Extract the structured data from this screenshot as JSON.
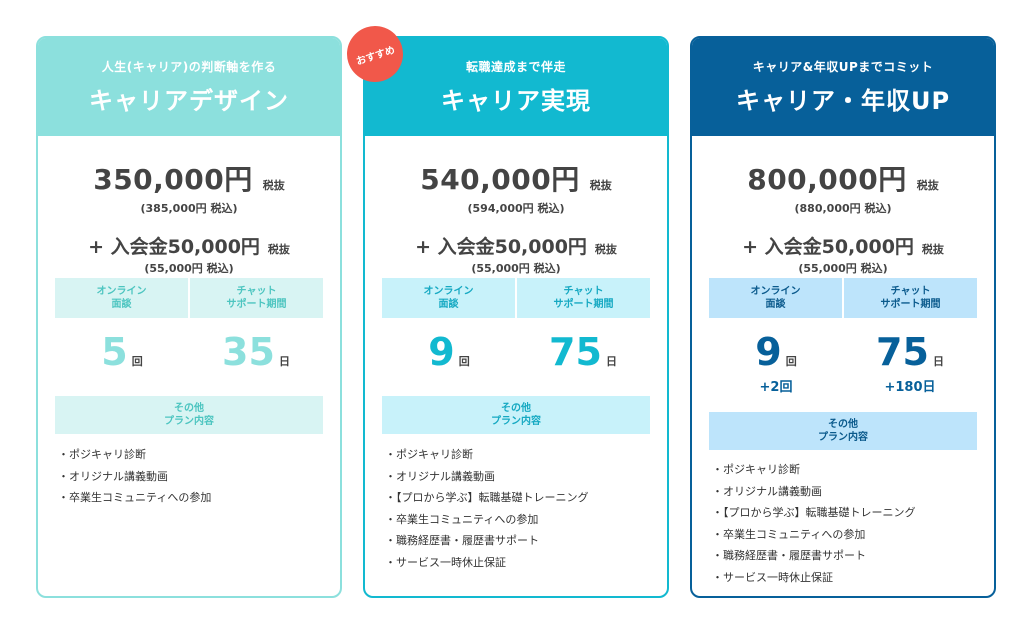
{
  "badge": "おすすめ",
  "plans": [
    {
      "subtitle": "人生(キャリア)の判断軸を作る",
      "title": "キャリアデザイン",
      "price": "350,000円",
      "price_tax": "税抜",
      "price_incl": "(385,000円 税込)",
      "fee": "+ 入会金50,000円",
      "fee_tax": "税抜",
      "fee_incl": "(55,000円 税込)",
      "online_label": "オンライン\n面談",
      "chat_label": "チャット\nサポート期間",
      "online_count": "5",
      "online_unit": "回",
      "chat_days": "35",
      "chat_unit": "日",
      "other_label": "その他\nプラン内容",
      "features": [
        "・ポジキャリ診断",
        "・オリジナル講義動画",
        "・卒業生コミュニティへの参加"
      ]
    },
    {
      "subtitle": "転職達成まで伴走",
      "title": "キャリア実現",
      "price": "540,000円",
      "price_tax": "税抜",
      "price_incl": "(594,000円 税込)",
      "fee": "+ 入会金50,000円",
      "fee_tax": "税抜",
      "fee_incl": "(55,000円 税込)",
      "online_label": "オンライン\n面談",
      "chat_label": "チャット\nサポート期間",
      "online_count": "9",
      "online_unit": "回",
      "chat_days": "75",
      "chat_unit": "日",
      "other_label": "その他\nプラン内容",
      "features": [
        "・ポジキャリ診断",
        "・オリジナル講義動画",
        "・【プロから学ぶ】転職基礎トレーニング",
        "・卒業生コミュニティへの参加",
        "・職務経歴書・履歴書サポート",
        "・サービス一時休止保証"
      ]
    },
    {
      "subtitle": "キャリア&年収UPまでコミット",
      "title": "キャリア・年収UP",
      "price": "800,000円",
      "price_tax": "税抜",
      "price_incl": "(880,000円 税込)",
      "fee": "+ 入会金50,000円",
      "fee_tax": "税抜",
      "fee_incl": "(55,000円 税込)",
      "online_label": "オンライン\n面談",
      "chat_label": "チャット\nサポート期間",
      "online_count": "9",
      "online_unit": "回",
      "online_extra": "+2回",
      "chat_days": "75",
      "chat_unit": "日",
      "chat_extra": "+180日",
      "other_label": "その他\nプラン内容",
      "features": [
        "・ポジキャリ診断",
        "・オリジナル講義動画",
        "・【プロから学ぶ】転職基礎トレーニング",
        "・卒業生コミュニティへの参加",
        "・職務経歴書・履歴書サポート",
        "・サービス一時休止保証"
      ]
    }
  ],
  "colors": {
    "plan1": "#8ce0dd",
    "plan2": "#12b9d0",
    "plan3": "#07609a",
    "badge": "#f1584a"
  }
}
